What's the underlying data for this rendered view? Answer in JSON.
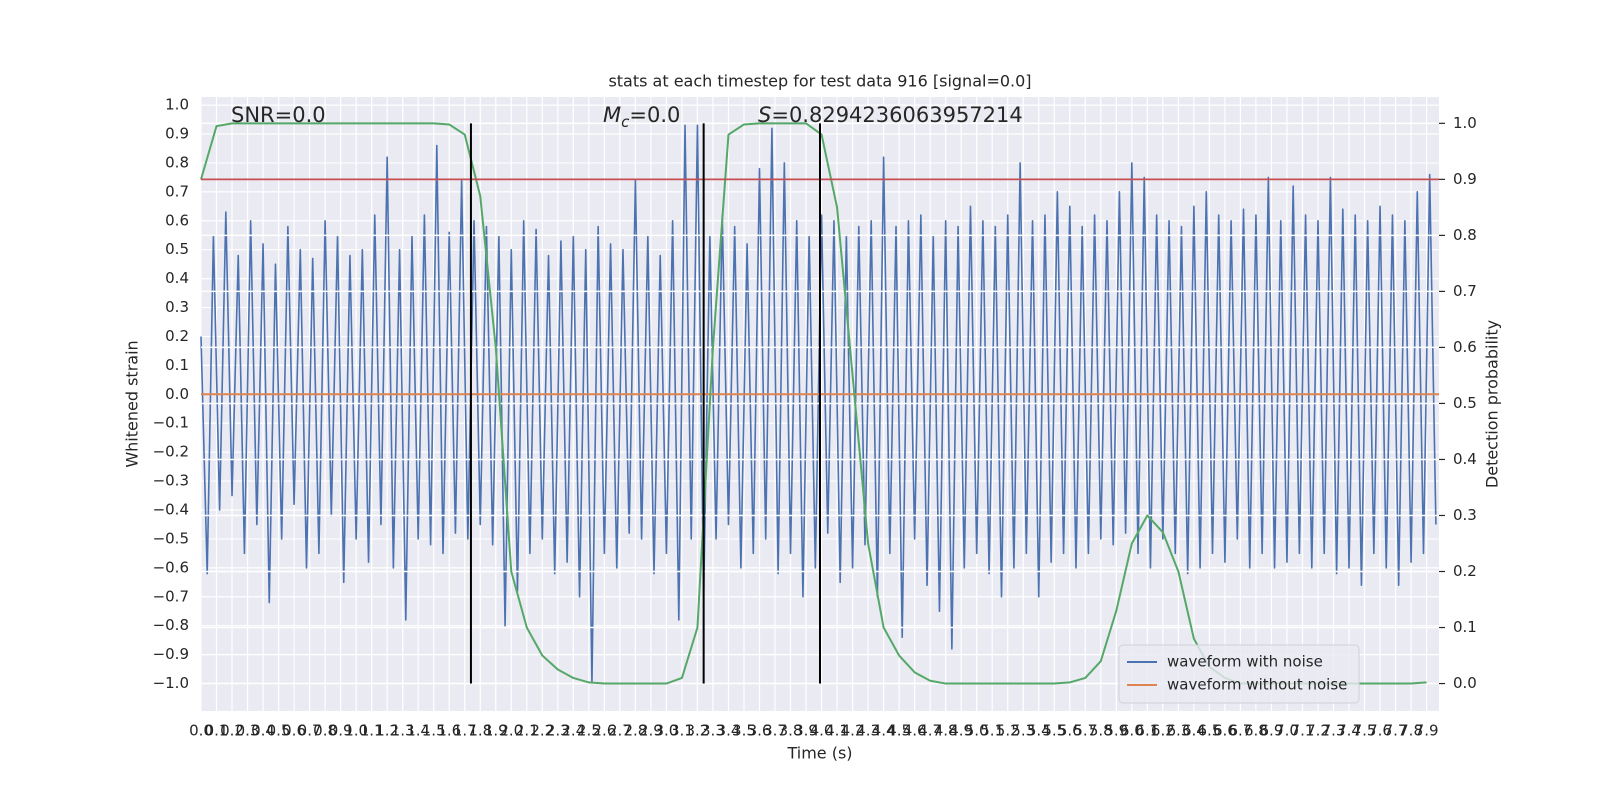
{
  "chart_data": {
    "type": "line",
    "title": "stats at each timestep for test data 916 [signal=0.0]",
    "xlabel": "Time (s)",
    "ylabel": "Whitened strain",
    "y2label": "Detection probability",
    "annotations": [
      {
        "text": "SNR=0.0"
      },
      {
        "symbol": "M",
        "subscript": "c",
        "text": "=0.0"
      },
      {
        "symbol": "S",
        "text": "=0.8294236063957214"
      }
    ],
    "xlim": [
      0,
      7.98
    ],
    "ylim": [
      -1.095,
      1.028
    ],
    "y2lim": [
      -0.049,
      1.047
    ],
    "xticks": [
      {
        "value": 0,
        "label": "0.0"
      },
      0.1,
      0.2,
      0.3,
      0.4,
      0.5,
      0.6,
      0.7,
      0.8,
      0.9,
      {
        "value": 1,
        "label": "1.0"
      },
      1.1,
      1.2,
      1.3,
      1.4,
      1.5,
      1.6,
      1.7,
      1.8,
      1.9,
      {
        "value": 2,
        "label": "2.0"
      },
      2.1,
      2.2,
      2.3,
      2.4,
      2.5,
      2.6,
      2.7,
      2.8,
      2.9,
      {
        "value": 3,
        "label": "3.0"
      },
      3.1,
      3.2,
      3.3,
      3.4,
      3.5,
      3.6,
      3.7,
      3.8,
      3.9,
      {
        "value": 4,
        "label": "4.0"
      },
      4.1,
      4.2,
      4.3,
      4.4,
      4.5,
      4.6,
      4.7,
      4.8,
      4.9,
      {
        "value": 5,
        "label": "5.0"
      },
      5.1,
      5.2,
      5.3,
      5.4,
      5.5,
      5.6,
      5.7,
      5.8,
      5.9,
      {
        "value": 6,
        "label": "6.0"
      },
      6.1,
      6.2,
      6.3,
      6.4,
      6.5,
      6.6,
      6.7,
      6.8,
      6.9,
      {
        "value": 7,
        "label": "7.0"
      },
      7.1,
      7.2,
      7.3,
      7.4,
      7.5,
      7.6,
      7.7,
      7.8,
      7.9
    ],
    "yticks": [
      {
        "value": -1,
        "label": "−1.0"
      },
      {
        "value": -0.9,
        "label": "−0.9"
      },
      {
        "value": -0.8,
        "label": "−0.8"
      },
      {
        "value": -0.7,
        "label": "−0.7"
      },
      {
        "value": -0.6,
        "label": "−0.6"
      },
      {
        "value": -0.5,
        "label": "−0.5"
      },
      {
        "value": -0.4,
        "label": "−0.4"
      },
      {
        "value": -0.3,
        "label": "−0.3"
      },
      {
        "value": -0.2,
        "label": "−0.2"
      },
      {
        "value": -0.1,
        "label": "−0.1"
      },
      {
        "value": 0,
        "label": "0.0"
      },
      0.1,
      0.2,
      0.3,
      0.4,
      0.5,
      0.6,
      0.7,
      0.8,
      0.9,
      {
        "value": 1,
        "label": "1.0"
      }
    ],
    "y2ticks": [
      {
        "value": 0,
        "label": "0.0"
      },
      0.1,
      0.2,
      0.3,
      0.4,
      0.5,
      0.6,
      0.7,
      0.8,
      0.9,
      {
        "value": 1,
        "label": "1.0"
      }
    ],
    "grid": true,
    "legend": "lower right",
    "background": "#eaeaf2",
    "series": [
      {
        "name": "waveform with noise",
        "color": "#4c72b0",
        "x": [
          0,
          0.04,
          0.08,
          0.12,
          0.16,
          0.2,
          0.24,
          0.28,
          0.32,
          0.36,
          0.4,
          0.44,
          0.48,
          0.52,
          0.56,
          0.6,
          0.64,
          0.68,
          0.72,
          0.76,
          0.8,
          0.84,
          0.88,
          0.92,
          0.96,
          1,
          1.04,
          1.08,
          1.12,
          1.16,
          1.2,
          1.24,
          1.28,
          1.32,
          1.36,
          1.4,
          1.44,
          1.48,
          1.52,
          1.56,
          1.6,
          1.64,
          1.68,
          1.72,
          1.76,
          1.8,
          1.84,
          1.88,
          1.92,
          1.96,
          2,
          2.04,
          2.08,
          2.12,
          2.16,
          2.2,
          2.24,
          2.28,
          2.32,
          2.36,
          2.4,
          2.44,
          2.48,
          2.52,
          2.56,
          2.6,
          2.64,
          2.68,
          2.72,
          2.76,
          2.8,
          2.84,
          2.88,
          2.92,
          2.96,
          3,
          3.04,
          3.08,
          3.12,
          3.16,
          3.2,
          3.24,
          3.28,
          3.32,
          3.36,
          3.4,
          3.44,
          3.48,
          3.52,
          3.56,
          3.6,
          3.64,
          3.68,
          3.72,
          3.76,
          3.8,
          3.84,
          3.88,
          3.92,
          3.96,
          4,
          4.04,
          4.08,
          4.12,
          4.16,
          4.2,
          4.24,
          4.28,
          4.32,
          4.36,
          4.4,
          4.44,
          4.48,
          4.52,
          4.56,
          4.6,
          4.64,
          4.68,
          4.72,
          4.76,
          4.8,
          4.84,
          4.88,
          4.92,
          4.96,
          5,
          5.04,
          5.08,
          5.12,
          5.16,
          5.2,
          5.24,
          5.28,
          5.32,
          5.36,
          5.4,
          5.44,
          5.48,
          5.52,
          5.56,
          5.6,
          5.64,
          5.68,
          5.72,
          5.76,
          5.8,
          5.84,
          5.88,
          5.92,
          5.96,
          6,
          6.04,
          6.08,
          6.12,
          6.16,
          6.2,
          6.24,
          6.28,
          6.32,
          6.36,
          6.4,
          6.44,
          6.48,
          6.52,
          6.56,
          6.6,
          6.64,
          6.68,
          6.72,
          6.76,
          6.8,
          6.84,
          6.88,
          6.92,
          6.96,
          7,
          7.04,
          7.08,
          7.12,
          7.16,
          7.2,
          7.24,
          7.28,
          7.32,
          7.36,
          7.4,
          7.44,
          7.48,
          7.52,
          7.56,
          7.6,
          7.64,
          7.68,
          7.72,
          7.76,
          7.8,
          7.84,
          7.88,
          7.92,
          7.96
        ],
        "values": [
          0.2,
          -0.62,
          0.55,
          -0.4,
          0.63,
          -0.35,
          0.48,
          -0.55,
          0.6,
          -0.45,
          0.52,
          -0.72,
          0.45,
          -0.5,
          0.58,
          -0.38,
          0.5,
          -0.6,
          0.47,
          -0.55,
          0.6,
          -0.42,
          0.55,
          -0.65,
          0.48,
          -0.5,
          0.5,
          -0.58,
          0.62,
          -0.45,
          0.82,
          -0.6,
          0.5,
          -0.78,
          0.55,
          -0.5,
          0.62,
          -0.52,
          0.86,
          -0.55,
          0.56,
          -0.48,
          0.74,
          -0.5,
          0.6,
          -0.45,
          0.58,
          -0.52,
          0.55,
          -0.8,
          0.5,
          -0.68,
          0.6,
          -0.55,
          0.57,
          -0.5,
          0.48,
          -0.62,
          0.53,
          -0.58,
          0.55,
          -0.7,
          0.5,
          -1.0,
          0.58,
          -0.55,
          0.52,
          -0.6,
          0.5,
          -0.48,
          0.74,
          -0.5,
          0.55,
          -0.62,
          0.48,
          -0.55,
          0.6,
          -0.78,
          0.93,
          -0.5,
          0.93,
          -0.7,
          0.55,
          -0.5,
          0.62,
          -0.45,
          0.58,
          -0.6,
          0.52,
          -0.55,
          0.78,
          -0.5,
          0.92,
          -0.62,
          0.8,
          -0.55,
          0.6,
          -0.7,
          0.55,
          -0.6,
          0.62,
          -0.48,
          0.6,
          -0.65,
          0.55,
          -0.6,
          0.58,
          -0.52,
          0.6,
          -0.7,
          0.82,
          -0.55,
          0.58,
          -0.84,
          0.6,
          -0.5,
          0.62,
          -0.66,
          0.55,
          -0.75,
          0.6,
          -0.88,
          0.58,
          -0.6,
          0.65,
          -0.55,
          0.6,
          -0.62,
          0.58,
          -0.7,
          0.62,
          -0.6,
          0.8,
          -0.55,
          0.6,
          -0.7,
          0.62,
          -0.58,
          0.7,
          -0.55,
          0.65,
          -0.6,
          0.58,
          -0.55,
          0.62,
          -0.5,
          0.6,
          -0.52,
          0.7,
          -0.48,
          0.8,
          -0.55,
          0.75,
          -0.6,
          0.62,
          -0.5,
          0.6,
          -0.55,
          0.58,
          -0.62,
          0.65,
          -0.6,
          0.7,
          -0.55,
          0.62,
          -0.58,
          0.6,
          -0.5,
          0.64,
          -0.6,
          0.62,
          -0.55,
          0.75,
          -0.6,
          0.6,
          -0.58,
          0.72,
          -0.55,
          0.62,
          -0.6,
          0.6,
          -0.55,
          0.75,
          -0.62,
          0.64,
          -0.6,
          0.62,
          -0.66,
          0.6,
          -0.55,
          0.65,
          -0.6,
          0.62,
          -0.66,
          0.6,
          -0.58,
          0.7,
          -0.55,
          0.76,
          -0.45
        ]
      },
      {
        "name": "waveform without noise",
        "color": "#dd8452",
        "x": [
          0,
          7.98
        ],
        "values": [
          0,
          0
        ]
      },
      {
        "color": "#55a868",
        "axis": "y2",
        "x": [
          0,
          0.1,
          0.2,
          0.3,
          0.4,
          0.5,
          0.6,
          0.7,
          0.8,
          0.9,
          1,
          1.1,
          1.2,
          1.3,
          1.4,
          1.5,
          1.6,
          1.7,
          1.8,
          1.9,
          2,
          2.1,
          2.2,
          2.3,
          2.4,
          2.5,
          2.6,
          2.7,
          2.8,
          2.9,
          3,
          3.1,
          3.2,
          3.3,
          3.4,
          3.5,
          3.6,
          3.7,
          3.8,
          3.9,
          4,
          4.1,
          4.2,
          4.3,
          4.4,
          4.5,
          4.6,
          4.7,
          4.8,
          4.9,
          5,
          5.1,
          5.2,
          5.3,
          5.4,
          5.5,
          5.6,
          5.7,
          5.8,
          5.9,
          6,
          6.1,
          6.2,
          6.3,
          6.4,
          6.5,
          6.6,
          6.7,
          6.8,
          6.9,
          7,
          7.1,
          7.2,
          7.3,
          7.4,
          7.5,
          7.6,
          7.7,
          7.8,
          7.9
        ],
        "values": [
          0.9,
          0.995,
          1,
          1,
          1,
          1,
          1,
          1,
          1,
          1,
          1,
          1,
          1,
          1,
          1,
          1,
          0.998,
          0.98,
          0.87,
          0.6,
          0.2,
          0.1,
          0.05,
          0.025,
          0.01,
          0.002,
          0,
          0,
          0,
          0,
          0,
          0.01,
          0.1,
          0.6,
          0.98,
          0.998,
          1,
          1,
          1,
          1,
          0.98,
          0.85,
          0.55,
          0.25,
          0.1,
          0.05,
          0.02,
          0.005,
          0,
          0,
          0,
          0,
          0,
          0,
          0,
          0,
          0.002,
          0.01,
          0.04,
          0.13,
          0.25,
          0.3,
          0.27,
          0.2,
          0.08,
          0.03,
          0.01,
          0,
          0,
          0,
          0,
          0,
          0,
          0,
          0,
          0,
          0,
          0,
          0,
          0.002
        ]
      }
    ],
    "hlines": [
      {
        "value": 0.9,
        "axis": "y2",
        "color": "#c44e52"
      }
    ],
    "vlines": {
      "x": [
        1.74,
        3.24,
        3.99
      ],
      "ymin": 0,
      "ymax": 1,
      "axis": "y2",
      "color": "#000000"
    }
  }
}
